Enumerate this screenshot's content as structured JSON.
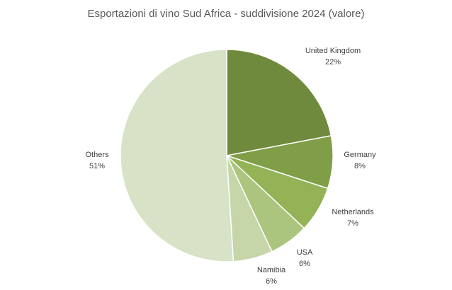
{
  "chart_data": {
    "type": "pie",
    "title": "Esportazioni di vino Sud Africa  - suddivisione 2024 (valore)",
    "categories": [
      "United Kingdom",
      "Germany",
      "Netherlands",
      "USA",
      "Namibia",
      "Others"
    ],
    "values": [
      22,
      8,
      7,
      6,
      6,
      51
    ],
    "value_labels": [
      "22%",
      "8%",
      "7%",
      "6%",
      "6%",
      "51%"
    ],
    "colors": [
      "#6f8a3c",
      "#7f9e47",
      "#93b356",
      "#abc57e",
      "#c6d6a8",
      "#d7e2c6"
    ]
  }
}
